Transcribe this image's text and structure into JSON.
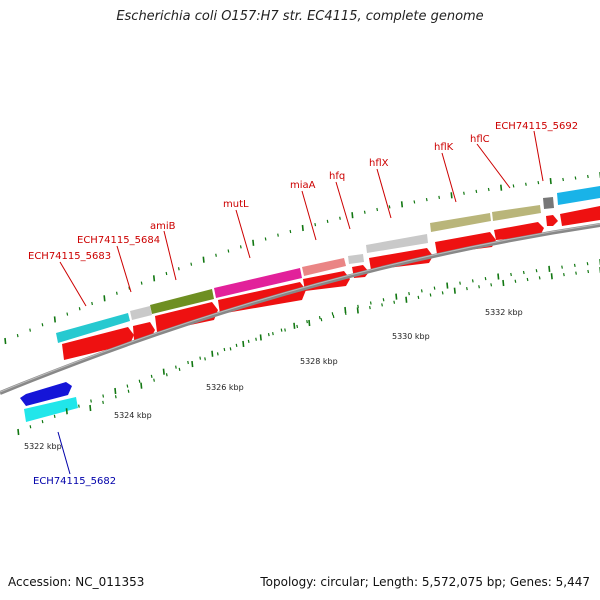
{
  "header": {
    "title": "Escherichia coli O157:H7 str. EC4115, complete genome"
  },
  "footer": {
    "accession": "Accession: NC_011353",
    "topology": "Topology: circular; Length: 5,572,075 bp; Genes: 5,447"
  },
  "scale": {
    "ticks": [
      "5322 kbp",
      "5324 kbp",
      "5326 kbp",
      "5328 kbp",
      "5330 kbp",
      "5332 kbp"
    ]
  },
  "genes": {
    "forward": [
      {
        "name": "ECH74115_5683",
        "color": "#26c9d0"
      },
      {
        "name": "",
        "color": "#c9c9c9"
      },
      {
        "name": "amiB",
        "color": "#6e8f22"
      },
      {
        "name": "mutL",
        "color": "#e2219a"
      },
      {
        "name": "miaA",
        "color": "#ea8585"
      },
      {
        "name": "hfq",
        "color": "#c9c9c9"
      },
      {
        "name": "hflX",
        "color": "#c9c9c9"
      },
      {
        "name": "hflK",
        "color": "#b9b57a"
      },
      {
        "name": "hflC",
        "color": "#b9b57a"
      },
      {
        "name": "",
        "color": "#777777"
      },
      {
        "name": "ECH74115_5692",
        "color": "#19b3e8"
      }
    ],
    "reverse_label": "ECH74115_5684",
    "other": [
      {
        "name": "ECH74115_5682",
        "color": "#21e6ea"
      }
    ]
  },
  "colors": {
    "label_red": "#cc0000",
    "label_blue": "#0000aa",
    "cds_red": "#ee1111",
    "backbone": "#888888",
    "ticks": "#117711"
  }
}
